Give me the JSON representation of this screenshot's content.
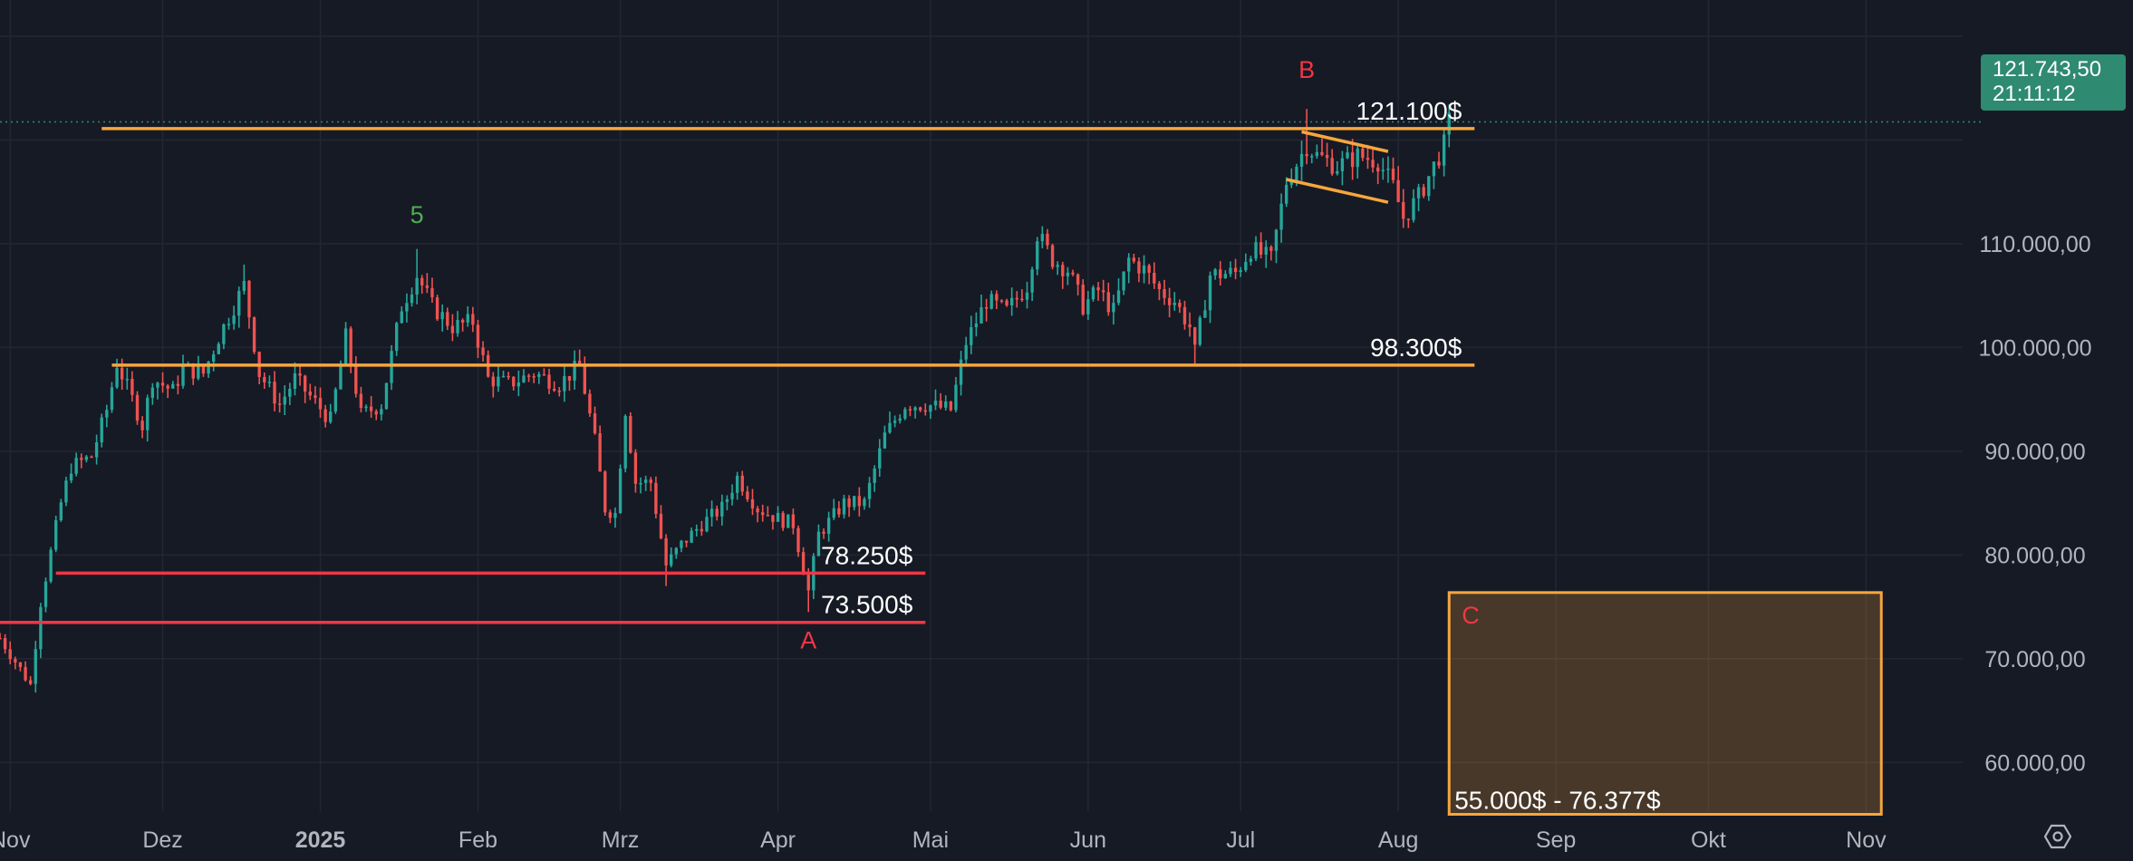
{
  "chart_data": {
    "type": "candlestick",
    "y_axis": {
      "ticks": [
        60000,
        70000,
        80000,
        90000,
        100000,
        110000
      ],
      "tick_labels": [
        "60.000,00",
        "70.000,00",
        "80.000,00",
        "90.000,00",
        "100.000,00",
        "110.000,00"
      ],
      "range": [
        50500,
        133500
      ],
      "position": "right"
    },
    "x_axis": {
      "range": [
        "2024-10-30",
        "2025-11-20"
      ],
      "ticks": [
        {
          "date": "2024-11-01",
          "label": "Nov",
          "bold": false
        },
        {
          "date": "2024-12-01",
          "label": "Dez",
          "bold": false
        },
        {
          "date": "2025-01-01",
          "label": "2025",
          "bold": true
        },
        {
          "date": "2025-02-01",
          "label": "Feb",
          "bold": false
        },
        {
          "date": "2025-03-01",
          "label": "Mrz",
          "bold": false
        },
        {
          "date": "2025-04-01",
          "label": "Apr",
          "bold": false
        },
        {
          "date": "2025-05-01",
          "label": "Mai",
          "bold": false
        },
        {
          "date": "2025-06-01",
          "label": "Jun",
          "bold": false
        },
        {
          "date": "2025-07-01",
          "label": "Jul",
          "bold": false
        },
        {
          "date": "2025-08-01",
          "label": "Aug",
          "bold": false
        },
        {
          "date": "2025-09-01",
          "label": "Sep",
          "bold": false
        },
        {
          "date": "2025-10-01",
          "label": "Okt",
          "bold": false
        },
        {
          "date": "2025-11-01",
          "label": "Nov",
          "bold": false
        }
      ]
    },
    "grid": true,
    "price_path": [
      [
        "2024-10-30",
        72000
      ],
      [
        "2024-11-03",
        69000
      ],
      [
        "2024-11-05",
        67500
      ],
      [
        "2024-11-07",
        75500
      ],
      [
        "2024-11-11",
        85000
      ],
      [
        "2024-11-13",
        88500
      ],
      [
        "2024-11-17",
        89500
      ],
      [
        "2024-11-20",
        94000
      ],
      [
        "2024-11-22",
        98500
      ],
      [
        "2024-11-25",
        95000
      ],
      [
        "2024-11-27",
        92500
      ],
      [
        "2024-11-29",
        97000
      ],
      [
        "2024-12-03",
        95800
      ],
      [
        "2024-12-05",
        98000
      ],
      [
        "2024-12-09",
        97500
      ],
      [
        "2024-12-12",
        101000
      ],
      [
        "2024-12-17",
        106000
      ],
      [
        "2024-12-20",
        97500
      ],
      [
        "2024-12-24",
        94500
      ],
      [
        "2024-12-27",
        97000
      ],
      [
        "2025-01-03",
        93000
      ],
      [
        "2025-01-06",
        101000
      ],
      [
        "2025-01-09",
        93500
      ],
      [
        "2025-01-13",
        94500
      ],
      [
        "2025-01-17",
        104000
      ],
      [
        "2025-01-20",
        107000
      ],
      [
        "2025-01-23",
        104000
      ],
      [
        "2025-01-27",
        102000
      ],
      [
        "2025-01-31",
        102500
      ],
      [
        "2025-02-03",
        97000
      ],
      [
        "2025-02-07",
        96500
      ],
      [
        "2025-02-12",
        97500
      ],
      [
        "2025-02-17",
        96500
      ],
      [
        "2025-02-21",
        98300
      ],
      [
        "2025-02-24",
        91000
      ],
      [
        "2025-02-26",
        84500
      ],
      [
        "2025-02-28",
        84000
      ],
      [
        "2025-03-02",
        94000
      ],
      [
        "2025-03-04",
        87000
      ],
      [
        "2025-03-07",
        87000
      ],
      [
        "2025-03-10",
        79000
      ],
      [
        "2025-03-13",
        81000
      ],
      [
        "2025-03-17",
        83000
      ],
      [
        "2025-03-21",
        84500
      ],
      [
        "2025-03-24",
        87500
      ],
      [
        "2025-03-28",
        84500
      ],
      [
        "2025-04-01",
        83500
      ],
      [
        "2025-04-04",
        83000
      ],
      [
        "2025-04-07",
        76500
      ],
      [
        "2025-04-09",
        82000
      ],
      [
        "2025-04-14",
        85000
      ],
      [
        "2025-04-18",
        85000
      ],
      [
        "2025-04-22",
        91500
      ],
      [
        "2025-04-26",
        94500
      ],
      [
        "2025-04-30",
        94500
      ],
      [
        "2025-05-05",
        94000
      ],
      [
        "2025-05-08",
        100500
      ],
      [
        "2025-05-12",
        104500
      ],
      [
        "2025-05-16",
        103500
      ],
      [
        "2025-05-20",
        106000
      ],
      [
        "2025-05-22",
        111000
      ],
      [
        "2025-05-25",
        108500
      ],
      [
        "2025-05-28",
        107500
      ],
      [
        "2025-05-31",
        104000
      ],
      [
        "2025-06-03",
        105500
      ],
      [
        "2025-06-06",
        103500
      ],
      [
        "2025-06-09",
        108500
      ],
      [
        "2025-06-12",
        107500
      ],
      [
        "2025-06-15",
        105500
      ],
      [
        "2025-06-18",
        104500
      ],
      [
        "2025-06-21",
        102000
      ],
      [
        "2025-06-22",
        99500
      ],
      [
        "2025-06-25",
        107000
      ],
      [
        "2025-06-30",
        107200
      ],
      [
        "2025-07-03",
        109500
      ],
      [
        "2025-07-07",
        108500
      ],
      [
        "2025-07-10",
        116000
      ],
      [
        "2025-07-14",
        119500
      ],
      [
        "2025-07-16",
        118500
      ],
      [
        "2025-07-20",
        117500
      ],
      [
        "2025-07-24",
        118500
      ],
      [
        "2025-07-28",
        118000
      ],
      [
        "2025-07-31",
        115500
      ],
      [
        "2025-08-02",
        112500
      ],
      [
        "2025-08-05",
        114500
      ],
      [
        "2025-08-08",
        117500
      ],
      [
        "2025-08-10",
        119500
      ],
      [
        "2025-08-11",
        121743
      ]
    ],
    "wicks": [
      {
        "date": "2025-01-20",
        "high": 109500
      },
      {
        "date": "2025-04-07",
        "low": 74500
      },
      {
        "date": "2025-07-14",
        "high": 123000
      },
      {
        "date": "2025-03-10",
        "low": 77000
      },
      {
        "date": "2024-12-17",
        "high": 108000
      },
      {
        "date": "2025-06-22",
        "low": 98300
      }
    ],
    "horizontal_levels": [
      {
        "price": 121100,
        "label": "121.100$",
        "color": "#f7a63d",
        "from": "2024-11-19",
        "to": "2025-08-16"
      },
      {
        "price": 98300,
        "label": "98.300$",
        "color": "#f7a63d",
        "from": "2024-11-21",
        "to": "2025-08-16"
      },
      {
        "price": 78250,
        "label": "78.250$",
        "color": "#f23645",
        "from": "2024-11-10",
        "to": "2025-04-30"
      },
      {
        "price": 73500,
        "label": "73.500$",
        "color": "#f23645",
        "from": "2024-10-30",
        "to": "2025-04-30"
      }
    ],
    "flag_lines": [
      {
        "from": [
          "2025-07-13",
          120800
        ],
        "to": [
          "2025-07-30",
          118900
        ]
      },
      {
        "from": [
          "2025-07-10",
          116200
        ],
        "to": [
          "2025-07-30",
          114000
        ]
      }
    ],
    "target_zone": {
      "label": "C",
      "range_label": "55.000$ - 76.377$",
      "low": 55000,
      "high": 76377,
      "from": "2025-08-11",
      "to": "2025-11-04",
      "color": "#f7a63d"
    },
    "wave_labels": [
      {
        "text": "5",
        "date": "2025-01-20",
        "price": 112000,
        "color": "green"
      },
      {
        "text": "B",
        "date": "2025-07-14",
        "price": 126000,
        "color": "red"
      },
      {
        "text": "A",
        "date": "2025-04-07",
        "price": 71000,
        "color": "red"
      }
    ],
    "current_price": {
      "value": 121743.5,
      "label": "121.743,50",
      "timer": "21:11:12"
    },
    "colors": {
      "up": "#26a69a",
      "down": "#ef5350",
      "grid": "#232734",
      "axis_text": "#b2b5be"
    }
  }
}
